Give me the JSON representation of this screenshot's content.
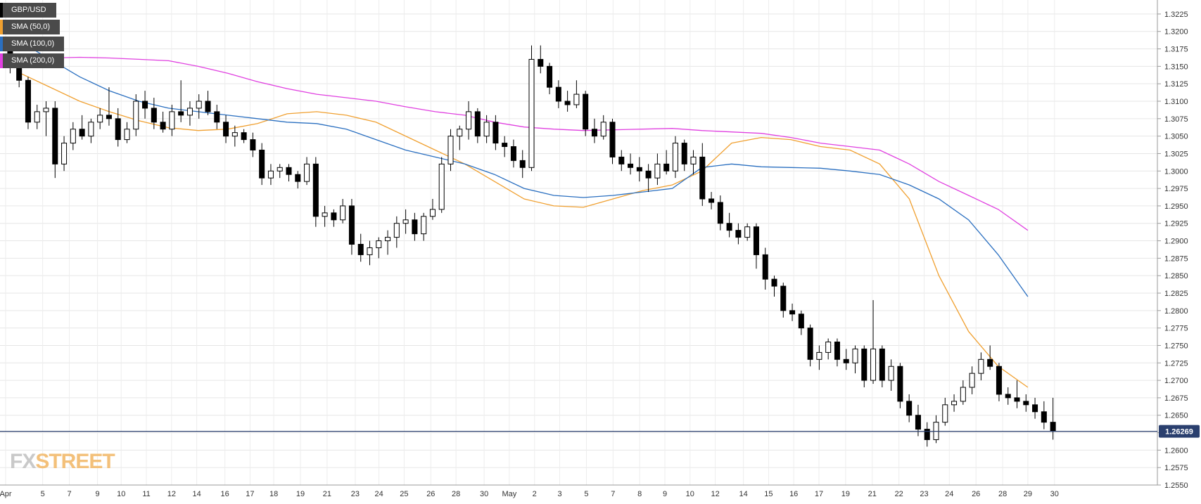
{
  "chart_data": {
    "type": "candlestick",
    "symbol": "GBP/USD",
    "indicators": [
      {
        "name": "SMA (50,0)",
        "color": "#f0a030",
        "values": [
          1.314,
          1.312,
          1.31,
          1.3085,
          1.3072,
          1.3062,
          1.3058,
          1.306,
          1.3068,
          1.3082,
          1.3085,
          1.308,
          1.307,
          1.305,
          1.303,
          1.301,
          1.2985,
          1.296,
          1.295,
          1.2948,
          1.296,
          1.2972,
          1.298,
          1.3,
          1.304,
          1.3048,
          1.3045,
          1.3035,
          1.303,
          1.301,
          1.296,
          1.285,
          1.277,
          1.272,
          1.269
        ]
      },
      {
        "name": "SMA (100,0)",
        "color": "#2a6fc0",
        "values": [
          1.3185,
          1.316,
          1.3135,
          1.3115,
          1.31,
          1.309,
          1.3085,
          1.308,
          1.3075,
          1.307,
          1.3068,
          1.306,
          1.3045,
          1.303,
          1.302,
          1.301,
          1.2995,
          1.2975,
          1.2965,
          1.2962,
          1.2965,
          1.297,
          1.2975,
          1.3005,
          1.301,
          1.3006,
          1.3005,
          1.3004,
          1.3,
          1.2995,
          1.298,
          1.296,
          1.293,
          1.288,
          1.282
        ]
      },
      {
        "name": "SMA (200,0)",
        "color": "#e040e0",
        "values": [
          1.316,
          1.3162,
          1.3163,
          1.3162,
          1.316,
          1.3158,
          1.315,
          1.314,
          1.3128,
          1.3118,
          1.311,
          1.3105,
          1.31,
          1.3092,
          1.3085,
          1.308,
          1.307,
          1.3063,
          1.306,
          1.3058,
          1.3059,
          1.306,
          1.3061,
          1.3058,
          1.3056,
          1.3054,
          1.3048,
          1.304,
          1.3035,
          1.303,
          1.301,
          1.2985,
          1.2965,
          1.2945,
          1.2915
        ]
      }
    ],
    "sma_x": [
      1,
      3,
      5,
      7,
      9,
      11,
      13,
      15,
      17,
      19,
      21,
      23,
      25,
      27,
      29,
      31,
      33,
      35,
      37,
      39,
      41,
      43,
      45,
      47,
      49,
      51,
      53,
      55,
      57,
      59,
      61,
      63,
      65,
      67,
      69
    ],
    "x_labels": [
      {
        "label": "Apr",
        "at": 0
      },
      {
        "label": "5",
        "at": 2.5
      },
      {
        "label": "7",
        "at": 4.3
      },
      {
        "label": "9",
        "at": 6.2
      },
      {
        "label": "10",
        "at": 7.8
      },
      {
        "label": "11",
        "at": 9.5
      },
      {
        "label": "12",
        "at": 11.2
      },
      {
        "label": "14",
        "at": 12.9
      },
      {
        "label": "16",
        "at": 14.8
      },
      {
        "label": "17",
        "at": 16.5
      },
      {
        "label": "18",
        "at": 18.1
      },
      {
        "label": "19",
        "at": 19.9
      },
      {
        "label": "21",
        "at": 21.7
      },
      {
        "label": "23",
        "at": 23.6
      },
      {
        "label": "24",
        "at": 25.2
      },
      {
        "label": "25",
        "at": 26.9
      },
      {
        "label": "26",
        "at": 28.7
      },
      {
        "label": "28",
        "at": 30.4
      },
      {
        "label": "30",
        "at": 32.3
      },
      {
        "label": "May",
        "at": 34.0
      },
      {
        "label": "2",
        "at": 35.7
      },
      {
        "label": "3",
        "at": 37.4
      },
      {
        "label": "5",
        "at": 39.2
      },
      {
        "label": "7",
        "at": 41.0
      },
      {
        "label": "8",
        "at": 42.8
      },
      {
        "label": "9",
        "at": 44.5
      },
      {
        "label": "10",
        "at": 46.2
      },
      {
        "label": "12",
        "at": 47.9
      },
      {
        "label": "14",
        "at": 49.8
      },
      {
        "label": "15",
        "at": 51.5
      },
      {
        "label": "16",
        "at": 53.2
      },
      {
        "label": "17",
        "at": 54.9
      },
      {
        "label": "19",
        "at": 56.7
      },
      {
        "label": "21",
        "at": 58.5
      },
      {
        "label": "22",
        "at": 60.3
      },
      {
        "label": "23",
        "at": 62.0
      },
      {
        "label": "24",
        "at": 63.7
      },
      {
        "label": "26",
        "at": 65.5
      },
      {
        "label": "28",
        "at": 67.3
      },
      {
        "label": "29",
        "at": 69.0
      },
      {
        "label": "30",
        "at": 70.8
      }
    ],
    "y_ticks": [
      "1.3225",
      "1.3200",
      "1.3175",
      "1.3150",
      "1.3125",
      "1.3100",
      "1.3075",
      "1.3050",
      "1.3025",
      "1.3000",
      "1.2975",
      "1.2950",
      "1.2925",
      "1.2900",
      "1.2875",
      "1.2850",
      "1.2825",
      "1.2800",
      "1.2775",
      "1.2750",
      "1.2725",
      "1.2700",
      "1.2675",
      "1.2650",
      "1.2625",
      "1.2600",
      "1.2575",
      "1.2550"
    ],
    "ylim": [
      1.255,
      1.3237
    ],
    "current_price": 1.26269,
    "current_price_label": "1.26269",
    "candles": [
      [
        1.3175,
        1.319,
        1.314,
        1.315
      ],
      [
        1.315,
        1.3165,
        1.312,
        1.313
      ],
      [
        1.313,
        1.3135,
        1.306,
        1.307
      ],
      [
        1.307,
        1.3095,
        1.306,
        1.3085
      ],
      [
        1.3085,
        1.31,
        1.305,
        1.309
      ],
      [
        1.309,
        1.31,
        1.299,
        1.301
      ],
      [
        1.301,
        1.305,
        1.3,
        1.304
      ],
      [
        1.304,
        1.307,
        1.303,
        1.306
      ],
      [
        1.306,
        1.308,
        1.3045,
        1.305
      ],
      [
        1.305,
        1.3075,
        1.304,
        1.307
      ],
      [
        1.307,
        1.309,
        1.306,
        1.308
      ],
      [
        1.308,
        1.312,
        1.3065,
        1.3075
      ],
      [
        1.3075,
        1.309,
        1.3035,
        1.3045
      ],
      [
        1.3045,
        1.307,
        1.304,
        1.306
      ],
      [
        1.306,
        1.311,
        1.305,
        1.31
      ],
      [
        1.31,
        1.3115,
        1.3075,
        1.309
      ],
      [
        1.309,
        1.3105,
        1.306,
        1.307
      ],
      [
        1.307,
        1.3085,
        1.3055,
        1.306
      ],
      [
        1.306,
        1.3095,
        1.305,
        1.3085
      ],
      [
        1.3085,
        1.313,
        1.307,
        1.308
      ],
      [
        1.308,
        1.31,
        1.3065,
        1.309
      ],
      [
        1.309,
        1.311,
        1.3075,
        1.31
      ],
      [
        1.31,
        1.3115,
        1.308,
        1.3085
      ],
      [
        1.3085,
        1.3095,
        1.306,
        1.307
      ],
      [
        1.307,
        1.308,
        1.304,
        1.305
      ],
      [
        1.305,
        1.3065,
        1.3035,
        1.3055
      ],
      [
        1.3055,
        1.306,
        1.304,
        1.3045
      ],
      [
        1.3045,
        1.3055,
        1.302,
        1.303
      ],
      [
        1.303,
        1.304,
        1.298,
        1.299
      ],
      [
        1.299,
        1.301,
        1.298,
        1.3
      ],
      [
        1.3,
        1.301,
        1.299,
        1.3005
      ],
      [
        1.3005,
        1.301,
        1.2985,
        1.2995
      ],
      [
        1.2995,
        1.3,
        1.2975,
        1.2985
      ],
      [
        1.2985,
        1.302,
        1.298,
        1.301
      ],
      [
        1.301,
        1.302,
        1.292,
        1.2935
      ],
      [
        1.2935,
        1.295,
        1.292,
        1.294
      ],
      [
        1.294,
        1.2945,
        1.292,
        1.293
      ],
      [
        1.293,
        1.296,
        1.2925,
        1.295
      ],
      [
        1.295,
        1.296,
        1.288,
        1.2895
      ],
      [
        1.2895,
        1.291,
        1.287,
        1.288
      ],
      [
        1.288,
        1.29,
        1.2865,
        1.289
      ],
      [
        1.289,
        1.2905,
        1.2875,
        1.29
      ],
      [
        1.29,
        1.2915,
        1.288,
        1.2905
      ],
      [
        1.2905,
        1.2935,
        1.289,
        1.2925
      ],
      [
        1.2925,
        1.2945,
        1.291,
        1.293
      ],
      [
        1.293,
        1.294,
        1.29,
        1.291
      ],
      [
        1.291,
        1.294,
        1.29,
        1.2935
      ],
      [
        1.2935,
        1.296,
        1.293,
        1.2945
      ],
      [
        1.2945,
        1.302,
        1.294,
        1.301
      ],
      [
        1.301,
        1.306,
        1.3,
        1.305
      ],
      [
        1.305,
        1.3065,
        1.303,
        1.306
      ],
      [
        1.306,
        1.31,
        1.3045,
        1.3085
      ],
      [
        1.3085,
        1.309,
        1.304,
        1.305
      ],
      [
        1.305,
        1.308,
        1.304,
        1.307
      ],
      [
        1.307,
        1.308,
        1.303,
        1.304
      ],
      [
        1.304,
        1.305,
        1.302,
        1.3035
      ],
      [
        1.3035,
        1.3045,
        1.3005,
        1.3015
      ],
      [
        1.3015,
        1.303,
        1.299,
        1.3005
      ],
      [
        1.3005,
        1.318,
        1.3,
        1.316
      ],
      [
        1.316,
        1.318,
        1.314,
        1.315
      ],
      [
        1.315,
        1.3155,
        1.311,
        1.312
      ],
      [
        1.312,
        1.313,
        1.309,
        1.31
      ],
      [
        1.31,
        1.3115,
        1.3085,
        1.3095
      ],
      [
        1.3095,
        1.313,
        1.309,
        1.311
      ],
      [
        1.311,
        1.3115,
        1.305,
        1.306
      ],
      [
        1.306,
        1.3075,
        1.304,
        1.305
      ],
      [
        1.305,
        1.308,
        1.3045,
        1.307
      ],
      [
        1.307,
        1.3075,
        1.301,
        1.302
      ],
      [
        1.302,
        1.303,
        1.3,
        1.301
      ],
      [
        1.301,
        1.3025,
        1.2995,
        1.3005
      ],
      [
        1.3005,
        1.302,
        1.2985,
        1.3
      ],
      [
        1.3,
        1.301,
        1.297,
        1.299
      ],
      [
        1.299,
        1.3025,
        1.298,
        1.301
      ],
      [
        1.301,
        1.303,
        1.2995,
        1.3
      ],
      [
        1.3,
        1.305,
        1.299,
        1.304
      ],
      [
        1.304,
        1.3045,
        1.3,
        1.301
      ],
      [
        1.301,
        1.303,
        1.2995,
        1.302
      ],
      [
        1.302,
        1.304,
        1.295,
        1.296
      ],
      [
        1.296,
        1.297,
        1.2945,
        1.2955
      ],
      [
        1.2955,
        1.2965,
        1.2915,
        1.2925
      ],
      [
        1.2925,
        1.294,
        1.2905,
        1.2915
      ],
      [
        1.2915,
        1.2925,
        1.2895,
        1.2905
      ],
      [
        1.2905,
        1.2925,
        1.29,
        1.292
      ],
      [
        1.292,
        1.2925,
        1.286,
        1.288
      ],
      [
        1.288,
        1.289,
        1.283,
        1.2845
      ],
      [
        1.2845,
        1.285,
        1.282,
        1.2835
      ],
      [
        1.2835,
        1.284,
        1.279,
        1.28
      ],
      [
        1.28,
        1.281,
        1.2785,
        1.2795
      ],
      [
        1.2795,
        1.28,
        1.2765,
        1.2775
      ],
      [
        1.2775,
        1.278,
        1.272,
        1.273
      ],
      [
        1.273,
        1.275,
        1.2715,
        1.274
      ],
      [
        1.274,
        1.276,
        1.273,
        1.2755
      ],
      [
        1.2755,
        1.276,
        1.272,
        1.273
      ],
      [
        1.273,
        1.2745,
        1.2715,
        1.2725
      ],
      [
        1.2725,
        1.275,
        1.271,
        1.2745
      ],
      [
        1.2745,
        1.275,
        1.269,
        1.27
      ],
      [
        1.27,
        1.2815,
        1.2695,
        1.2745
      ],
      [
        1.2745,
        1.275,
        1.269,
        1.27
      ],
      [
        1.27,
        1.273,
        1.2685,
        1.272
      ],
      [
        1.272,
        1.2725,
        1.266,
        1.267
      ],
      [
        1.267,
        1.268,
        1.264,
        1.265
      ],
      [
        1.265,
        1.2665,
        1.262,
        1.263
      ],
      [
        1.263,
        1.264,
        1.2605,
        1.2615
      ],
      [
        1.2615,
        1.265,
        1.261,
        1.264
      ],
      [
        1.264,
        1.2675,
        1.2635,
        1.2665
      ],
      [
        1.2665,
        1.268,
        1.2655,
        1.267
      ],
      [
        1.267,
        1.27,
        1.2665,
        1.269
      ],
      [
        1.269,
        1.272,
        1.268,
        1.271
      ],
      [
        1.271,
        1.274,
        1.27,
        1.273
      ],
      [
        1.273,
        1.275,
        1.2715,
        1.272
      ],
      [
        1.272,
        1.2725,
        1.267,
        1.268
      ],
      [
        1.268,
        1.269,
        1.2665,
        1.2675
      ],
      [
        1.2675,
        1.27,
        1.266,
        1.267
      ],
      [
        1.267,
        1.268,
        1.2655,
        1.2665
      ],
      [
        1.2665,
        1.2675,
        1.2645,
        1.2655
      ],
      [
        1.2655,
        1.267,
        1.263,
        1.264
      ],
      [
        1.264,
        1.2675,
        1.2615,
        1.2627
      ]
    ]
  },
  "legend": [
    {
      "label": "GBP/USD",
      "color": "#000000"
    },
    {
      "label": "SMA (50,0)",
      "color": "#f0a030"
    },
    {
      "label": "SMA (100,0)",
      "color": "#2a6fc0"
    },
    {
      "label": "SMA (200,0)",
      "color": "#e040e0"
    }
  ],
  "brand": {
    "part1": "FX",
    "part2": "STREET"
  }
}
